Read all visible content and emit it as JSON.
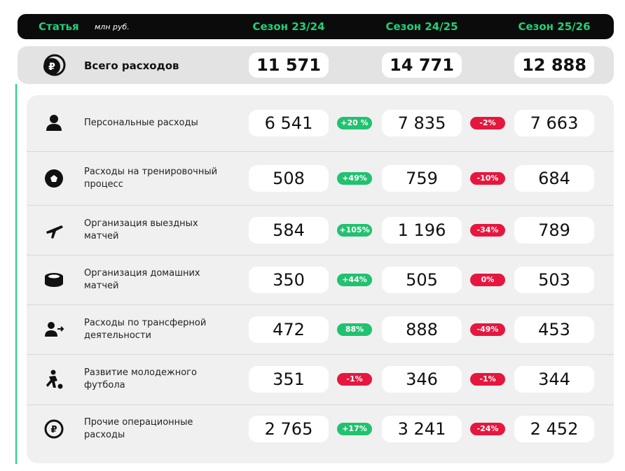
{
  "header": {
    "column_label": "Статья",
    "unit": "млн руб.",
    "seasons": [
      "Сезон 23/24",
      "Сезон 24/25",
      "Сезон 25/26"
    ]
  },
  "total": {
    "label": "Всего расходов",
    "values": [
      "11 571",
      "14 771",
      "12 888"
    ]
  },
  "rows": [
    {
      "label": "Персональные расходы",
      "values": [
        "6 541",
        "7 835",
        "7 663"
      ],
      "changes": [
        "+20 %",
        "-2%"
      ],
      "change_colors": [
        "#22c170",
        "#e5173f"
      ]
    },
    {
      "label": "Расходы на тренировочный процесс",
      "values": [
        "508",
        "759",
        "684"
      ],
      "changes": [
        "+49%",
        "-10%"
      ],
      "change_colors": [
        "#22c170",
        "#e5173f"
      ]
    },
    {
      "label": "Организация выездных матчей",
      "values": [
        "584",
        "1 196",
        "789"
      ],
      "changes": [
        "+105%",
        "-34%"
      ],
      "change_colors": [
        "#22c170",
        "#e5173f"
      ]
    },
    {
      "label": "Организация домашних матчей",
      "values": [
        "350",
        "505",
        "503"
      ],
      "changes": [
        "+44%",
        "0%"
      ],
      "change_colors": [
        "#22c170",
        "#e5173f"
      ]
    },
    {
      "label": "Расходы по трансферной деятельности",
      "values": [
        "472",
        "888",
        "453"
      ],
      "changes": [
        "88%",
        "-49%"
      ],
      "change_colors": [
        "#22c170",
        "#e5173f"
      ]
    },
    {
      "label": "Развитие молодежного футбола",
      "values": [
        "351",
        "346",
        "344"
      ],
      "changes": [
        "-1%",
        "-1%"
      ],
      "change_colors": [
        "#e5173f",
        "#e5173f"
      ]
    },
    {
      "label": "Прочие операционные расходы",
      "values": [
        "2 765",
        "3 241",
        "2 452"
      ],
      "changes": [
        "+17%",
        "-24%"
      ],
      "change_colors": [
        "#22c170",
        "#e5173f"
      ]
    }
  ]
}
